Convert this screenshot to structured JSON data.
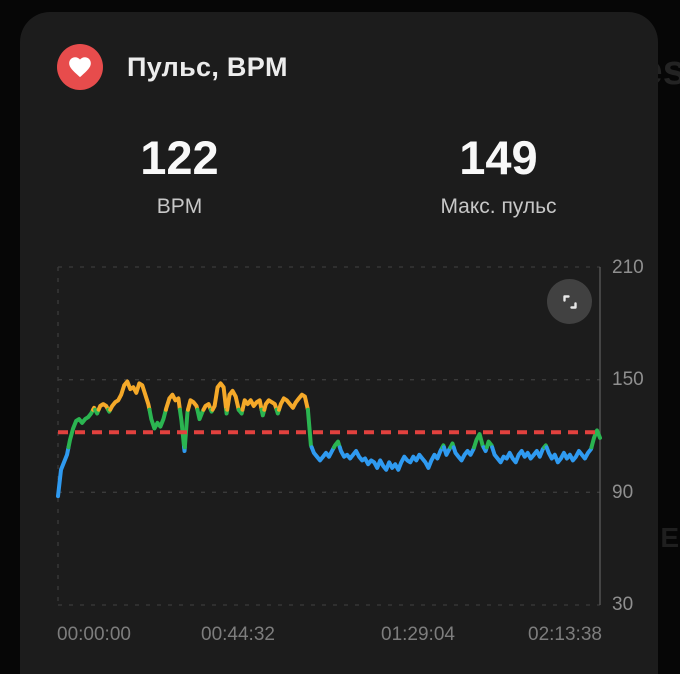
{
  "header": {
    "title": "Пульс, BPM"
  },
  "stats": [
    {
      "value": "122",
      "label": "BPM"
    },
    {
      "value": "149",
      "label": "Макс. пульс"
    }
  ],
  "background_watermark": {
    "fragment_top": "es",
    "fragment_side": "E"
  },
  "chart_data": {
    "type": "line",
    "title": "Пульс, BPM",
    "ylabel": "BPM",
    "y_range": [
      30,
      210
    ],
    "y_ticks": [
      30,
      90,
      150,
      210
    ],
    "y_tick_labels_top_to_bottom": [
      "210",
      "150",
      "90",
      "30"
    ],
    "x_tick_labels": [
      "00:00:00",
      "00:44:32",
      "01:29:04",
      "02:13:38"
    ],
    "x_tick_seconds": [
      0,
      2672,
      5344,
      8018
    ],
    "total_seconds": 8015,
    "sample_interval_seconds": 44.5,
    "average_line_bpm": 122,
    "legend_position": "none",
    "grid": "dashed horizontal lines at each y tick, dashed left edge, solid right edge",
    "zone_thresholds": {
      "blue_below": 114,
      "green_below": 134
    },
    "colors": {
      "blue": "#2f9af0",
      "green": "#2bb551",
      "amber": "#f5a929",
      "average_line": "#e2413e",
      "grid": "#3b3b3b",
      "right_axis": "#5a5a5a",
      "heart_badge": "#e74c4c"
    },
    "bpm_series": [
      88,
      102,
      106,
      110,
      118,
      124,
      128,
      129,
      127,
      129,
      130,
      132,
      135,
      132,
      136,
      137,
      136,
      133,
      136,
      138,
      139,
      142,
      147,
      149,
      145,
      146,
      143,
      148,
      147,
      142,
      137,
      129,
      124,
      127,
      125,
      129,
      135,
      140,
      142,
      139,
      140,
      128,
      112,
      133,
      139,
      138,
      136,
      129,
      133,
      136,
      137,
      133,
      136,
      146,
      148,
      146,
      132,
      142,
      144,
      141,
      134,
      132,
      139,
      137,
      139,
      136,
      138,
      139,
      131,
      137,
      139,
      138,
      137,
      132,
      137,
      140,
      139,
      137,
      135,
      138,
      140,
      142,
      141,
      134,
      115,
      111,
      109,
      107,
      109,
      111,
      109,
      112,
      115,
      117,
      112,
      109,
      110,
      108,
      110,
      112,
      109,
      107,
      108,
      105,
      107,
      106,
      103,
      107,
      104,
      102,
      106,
      103,
      105,
      102,
      106,
      109,
      107,
      106,
      109,
      107,
      110,
      108,
      106,
      103,
      107,
      110,
      108,
      112,
      115,
      110,
      113,
      116,
      111,
      109,
      107,
      110,
      112,
      110,
      113,
      118,
      121,
      115,
      112,
      117,
      115,
      110,
      108,
      106,
      109,
      108,
      111,
      108,
      106,
      110,
      112,
      109,
      111,
      108,
      110,
      112,
      109,
      113,
      115,
      111,
      108,
      110,
      106,
      108,
      111,
      108,
      110,
      107,
      109,
      112,
      110,
      108,
      111,
      113,
      119,
      123,
      119
    ]
  }
}
